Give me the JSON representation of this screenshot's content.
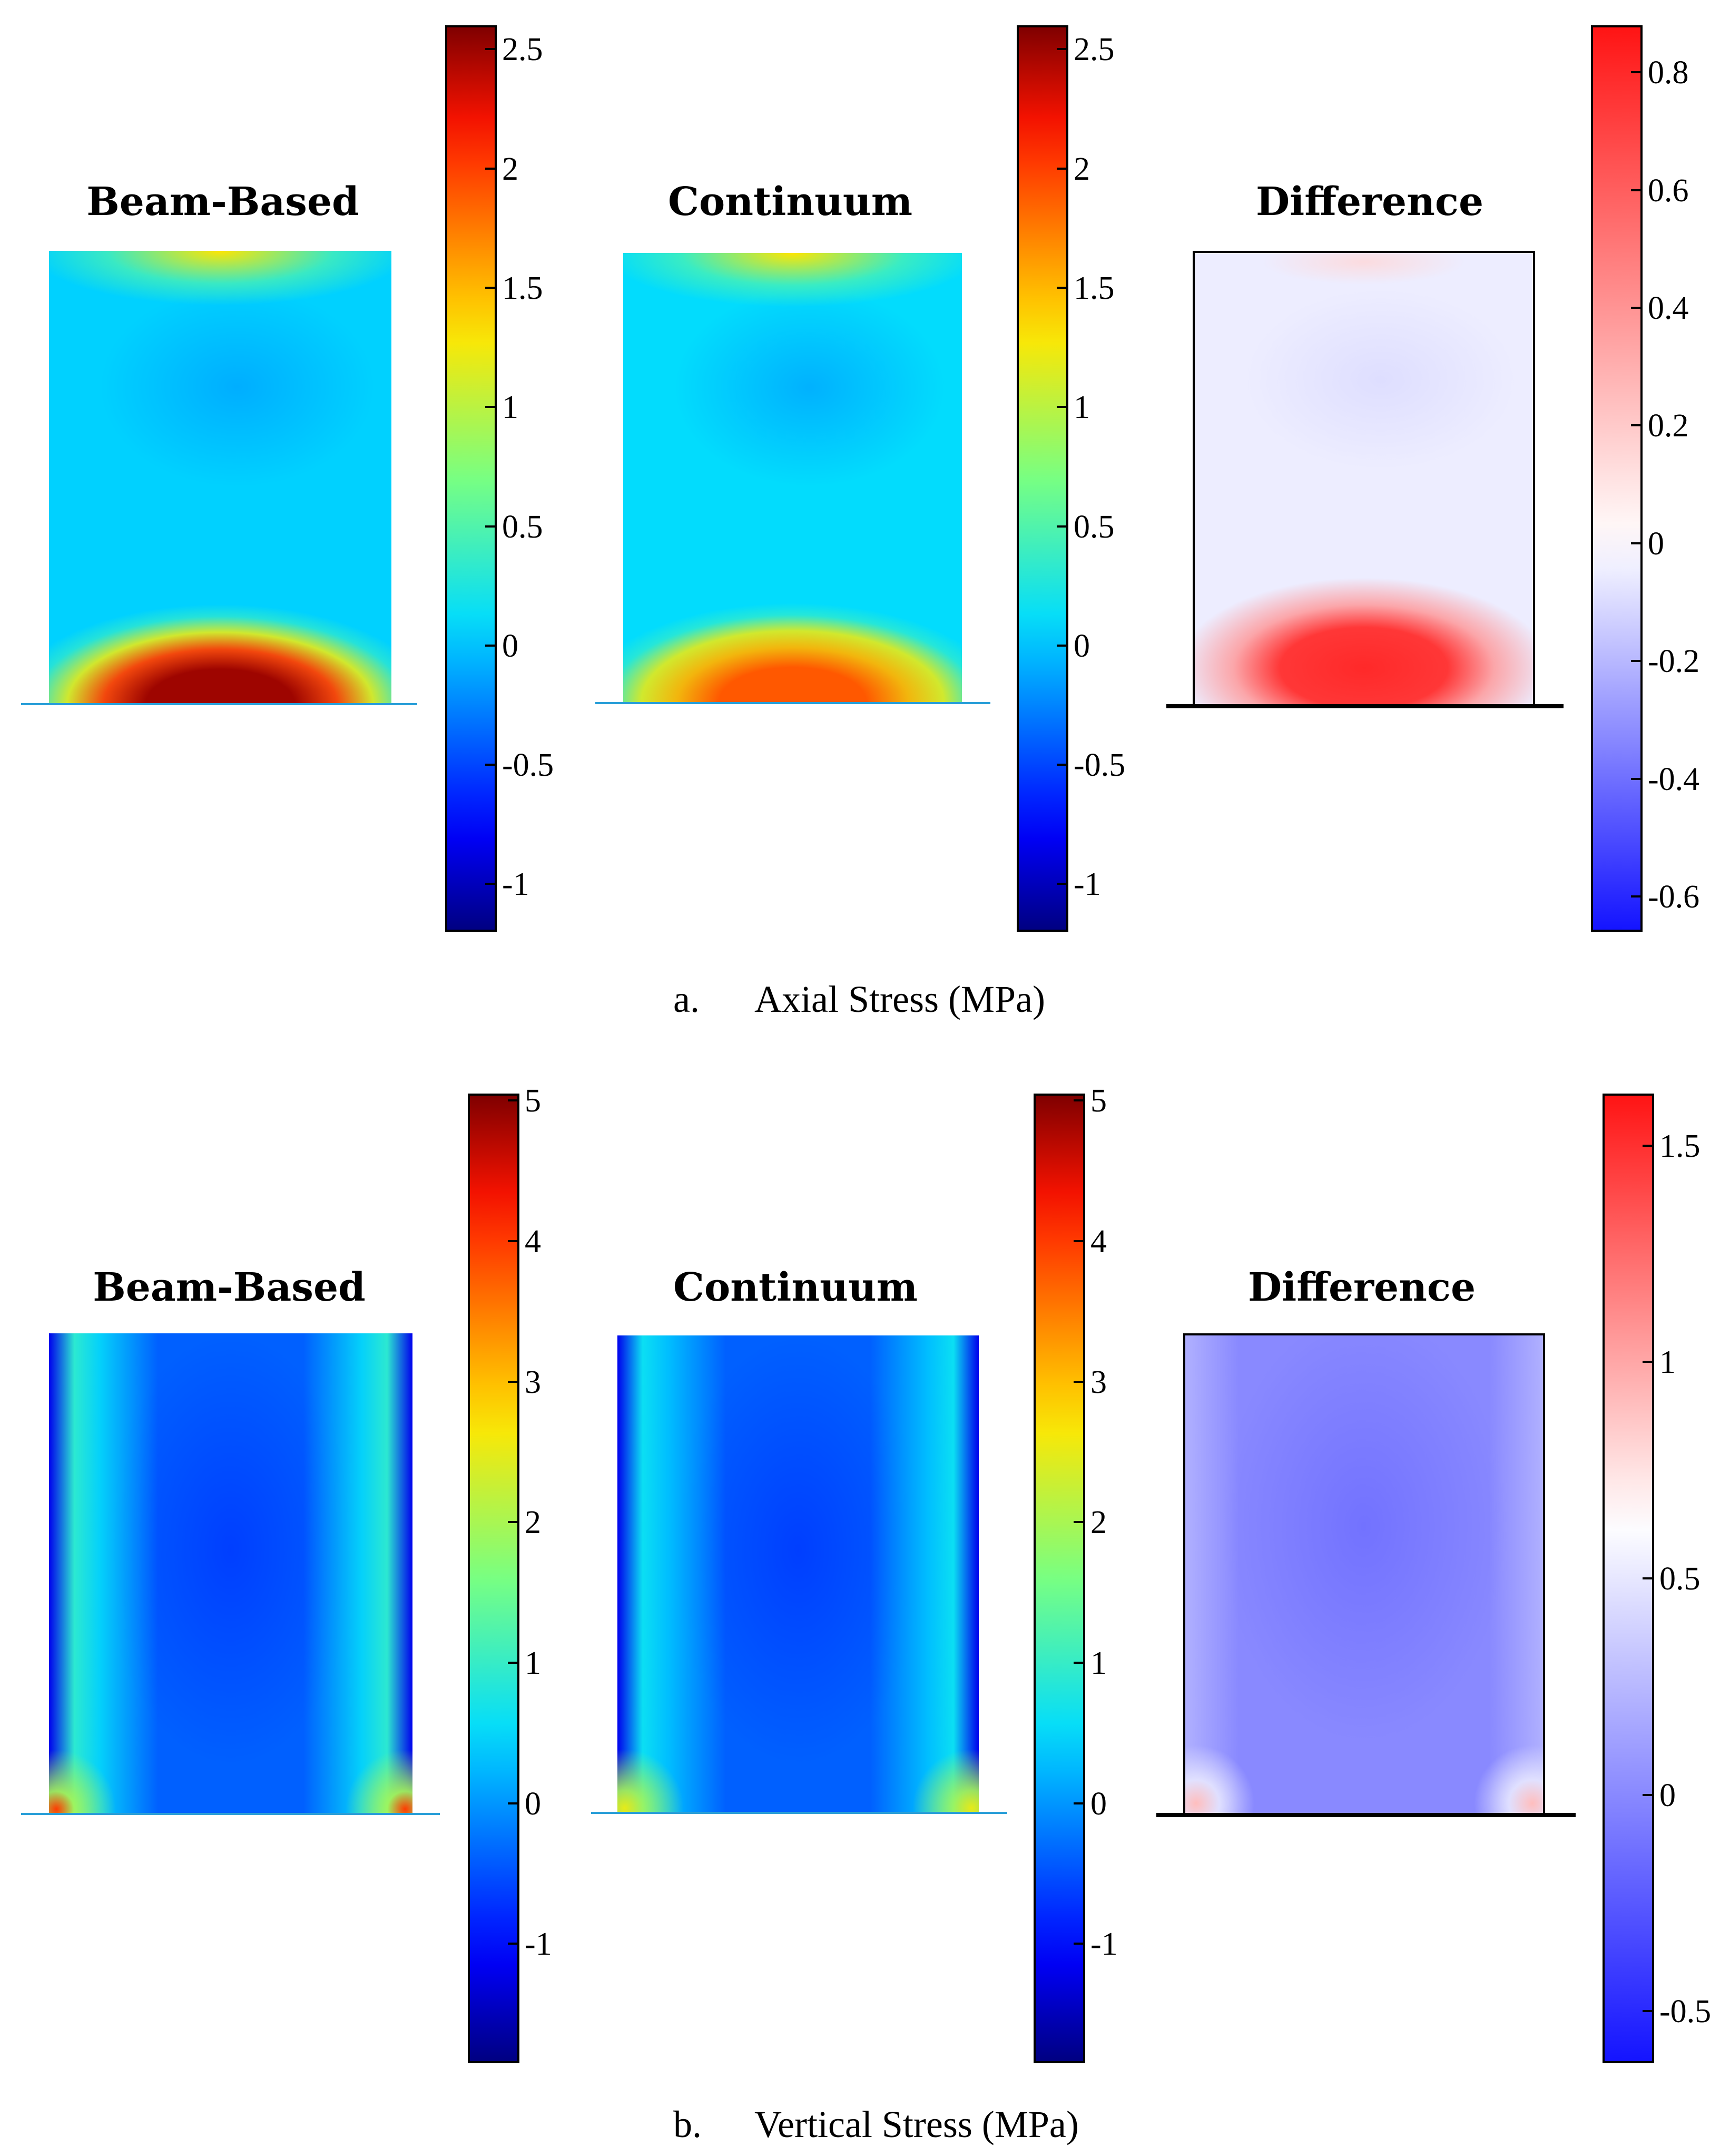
{
  "figure": {
    "panel_a": {
      "letter": "a.",
      "caption": "Axial Stress (MPa)",
      "plots": [
        {
          "title": "Beam-Based",
          "kind": "jet"
        },
        {
          "title": "Continuum",
          "kind": "jet"
        },
        {
          "title": "Difference",
          "kind": "diff"
        }
      ]
    },
    "panel_b": {
      "letter": "b.",
      "caption": "Vertical Stress (MPa)",
      "plots": [
        {
          "title": "Beam-Based",
          "kind": "jet"
        },
        {
          "title": "Continuum",
          "kind": "jet"
        },
        {
          "title": "Difference",
          "kind": "diff"
        }
      ]
    }
  },
  "chart_data": [
    {
      "type": "heatmap",
      "title": "Beam-Based",
      "panel": "a. Axial Stress (MPa)",
      "colormap": "jet",
      "colorbar_range": [
        -1.2,
        2.6
      ],
      "colorbar_ticks": [
        2.5,
        2,
        1.5,
        1,
        0.5,
        0,
        -0.5,
        -1
      ],
      "colorbar_tick_labels": [
        "2.5",
        "2",
        "1.5",
        "1",
        "0.5",
        "0",
        "-0.5",
        "-1"
      ],
      "features": {
        "background": 0.05,
        "top_arc": 1.3,
        "bottom_arc_peak": 2.5
      }
    },
    {
      "type": "heatmap",
      "title": "Continuum",
      "panel": "a. Axial Stress (MPa)",
      "colormap": "jet",
      "colorbar_range": [
        -1.2,
        2.6
      ],
      "colorbar_ticks": [
        2.5,
        2,
        1.5,
        1,
        0.5,
        0,
        -0.5,
        -1
      ],
      "colorbar_tick_labels": [
        "2.5",
        "2",
        "1.5",
        "1",
        "0.5",
        "0",
        "-0.5",
        "-1"
      ],
      "features": {
        "background": 0.1,
        "top_arc": 1.3,
        "bottom_arc_peak": 1.9
      }
    },
    {
      "type": "heatmap",
      "title": "Difference",
      "panel": "a. Axial Stress (MPa)",
      "colormap": "blue-white-red",
      "colorbar_range": [
        -0.66,
        0.88
      ],
      "colorbar_ticks": [
        0.8,
        0.6,
        0.4,
        0.2,
        0,
        -0.2,
        -0.4,
        -0.6
      ],
      "colorbar_tick_labels": [
        "0.8",
        "0.6",
        "0.4",
        "0.2",
        "0",
        "-0.2",
        "-0.4",
        "-0.6"
      ],
      "features": {
        "background": -0.05,
        "bottom_arc_peak": 0.8
      }
    },
    {
      "type": "heatmap",
      "title": "Beam-Based",
      "panel": "b. Vertical Stress (MPa)",
      "colormap": "jet",
      "colorbar_range": [
        -1.85,
        5.05
      ],
      "colorbar_ticks": [
        5,
        4,
        3,
        2,
        1,
        0,
        -1
      ],
      "colorbar_tick_labels": [
        "5",
        "4",
        "3",
        "2",
        "1",
        "0",
        "-1"
      ],
      "features": {
        "background": -0.4,
        "side_bands": 0.9,
        "corner_peak": 4.0
      }
    },
    {
      "type": "heatmap",
      "title": "Continuum",
      "panel": "b. Vertical Stress (MPa)",
      "colormap": "jet",
      "colorbar_range": [
        -1.85,
        5.05
      ],
      "colorbar_ticks": [
        5,
        4,
        3,
        2,
        1,
        0,
        -1
      ],
      "colorbar_tick_labels": [
        "5",
        "4",
        "3",
        "2",
        "1",
        "0",
        "-1"
      ],
      "features": {
        "background": -0.4,
        "side_bands": 0.6,
        "corner_peak": 2.5
      }
    },
    {
      "type": "heatmap",
      "title": "Difference",
      "panel": "b. Vertical Stress (MPa)",
      "colormap": "blue-white-red",
      "colorbar_range": [
        -0.62,
        1.62
      ],
      "colorbar_ticks": [
        1.5,
        1,
        0.5,
        0,
        -0.5
      ],
      "colorbar_tick_labels": [
        "1.5",
        "1",
        "0.5",
        "0",
        "-0.5"
      ],
      "features": {
        "background": 0.0,
        "corner_peak": 0.9
      }
    }
  ]
}
